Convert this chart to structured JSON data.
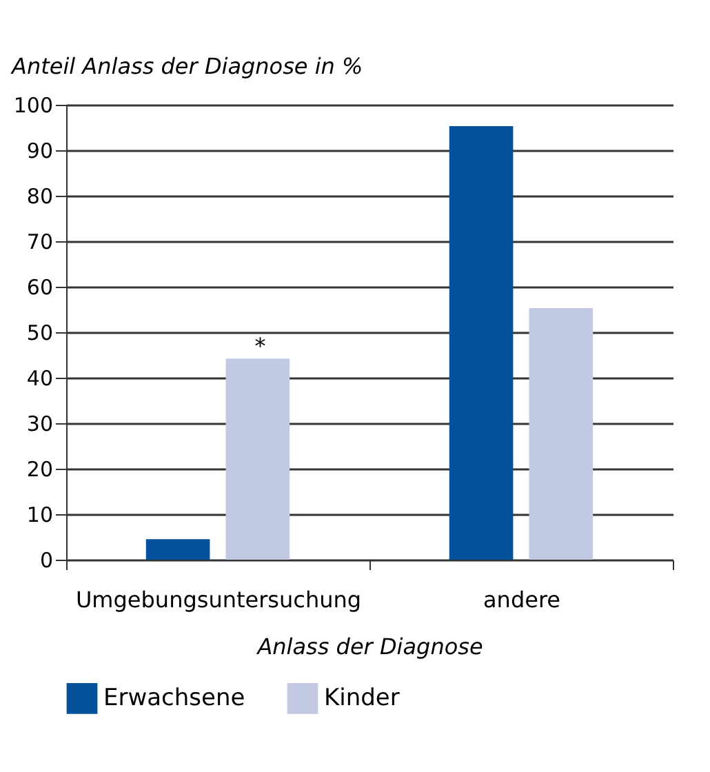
{
  "chart_data": {
    "type": "bar",
    "ylabel": "Anteil Anlass der Diagnose in %",
    "xlabel": "Anlass der Diagnose",
    "categories": [
      "Umgebungsuntersuchung",
      "andere"
    ],
    "series": [
      {
        "name": "Erwachsene",
        "color": "#03529b",
        "values": [
          4.5,
          95.3
        ]
      },
      {
        "name": "Kinder",
        "color": "#c2cae3",
        "values": [
          44.2,
          55.3
        ]
      }
    ],
    "ylim": [
      0,
      100
    ],
    "yticks": [
      0,
      10,
      20,
      30,
      40,
      50,
      60,
      70,
      80,
      90,
      100
    ],
    "grid": "y",
    "legend": "bottom",
    "annotations": [
      "*"
    ]
  }
}
